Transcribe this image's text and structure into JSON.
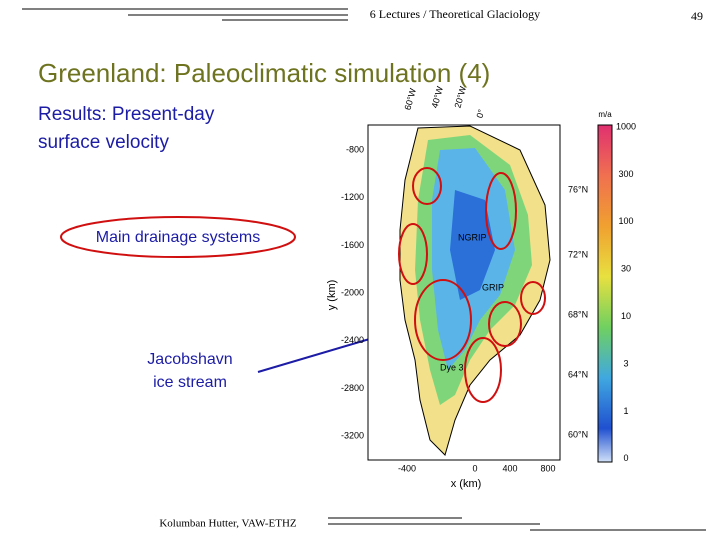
{
  "header": {
    "course": "6 Lectures / Theoretical Glaciology",
    "page": "49"
  },
  "title": "Greenland: Paleoclimatic simulation (4)",
  "subtitle": [
    "Results: Present-day",
    "surface velocity"
  ],
  "callouts": {
    "drainage": "Main drainage systems",
    "jacobshavn": [
      "Jacobshavn",
      "ice stream"
    ]
  },
  "figure": {
    "y_label": "y (km)",
    "x_label": "x (km)",
    "y_ticks": [
      -800,
      -1200,
      -1600,
      -2000,
      -2400,
      -2800,
      -3200
    ],
    "x_ticks": [
      -400,
      0,
      400,
      800
    ],
    "colorbar_unit": "m/a",
    "colorbar_ticks": [
      1000,
      300,
      100,
      30,
      10,
      3,
      1,
      0
    ],
    "longitudes": [
      "60°W",
      "40°W",
      "20°W",
      "0°"
    ],
    "latitudes": [
      "76°N",
      "72°N",
      "68°N",
      "64°N",
      "60°N"
    ],
    "sites": [
      "NGRIP",
      "GRIP",
      "Dye 3"
    ]
  },
  "footer": "Kolumban Hutter, VAW-ETHZ"
}
